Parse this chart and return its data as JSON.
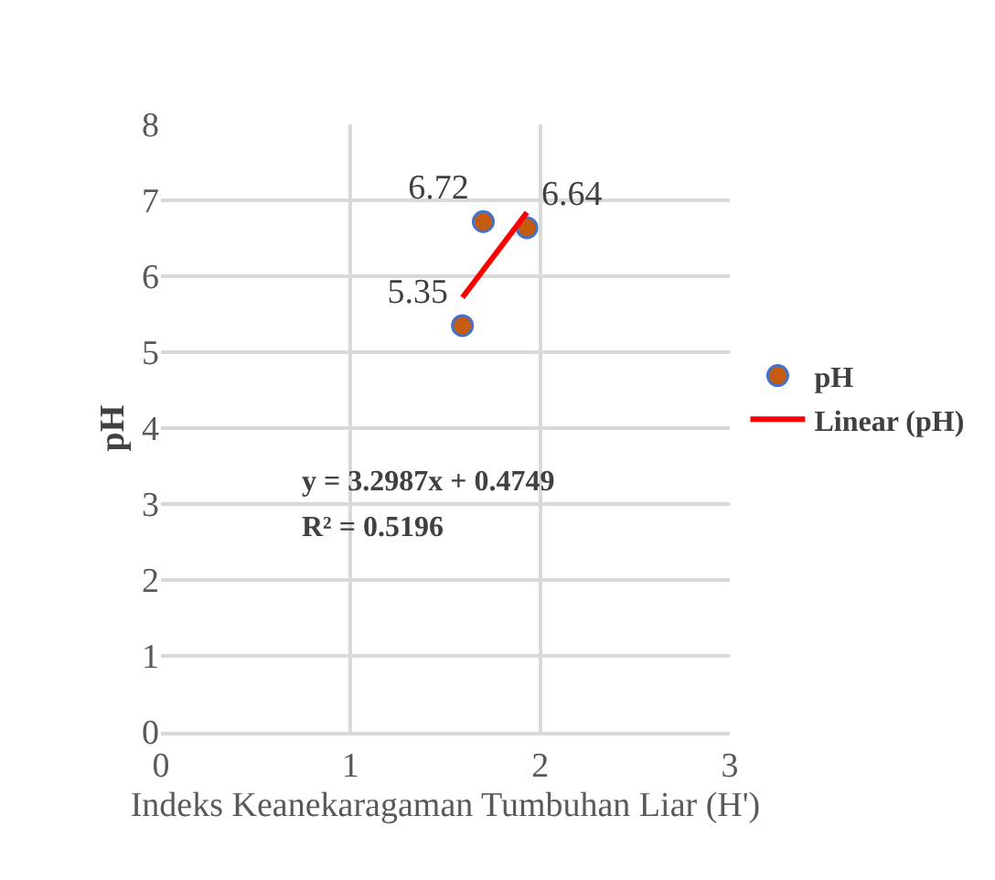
{
  "chart_data": {
    "type": "scatter",
    "xlabel": "Indeks Keanekaragaman Tumbuhan Liar (H')",
    "ylabel": "pH",
    "xlim": [
      0,
      3
    ],
    "xticks": [
      0,
      1,
      2,
      3
    ],
    "ylim": [
      0,
      8
    ],
    "yticks": [
      0,
      1,
      2,
      3,
      4,
      5,
      6,
      7,
      8
    ],
    "grid": true,
    "legend": "right",
    "marker": "circle",
    "series": [
      {
        "name": "pH",
        "type": "scatter",
        "color": "#c55a11",
        "x": [
          1.59,
          1.7,
          1.93
        ],
        "values": [
          5.35,
          6.72,
          6.64
        ],
        "value_labels": [
          "5.35",
          "6.72",
          "6.64"
        ]
      },
      {
        "name": "Linear (pH)",
        "type": "line",
        "color": "#ff0000",
        "x": [
          1.59,
          1.93
        ],
        "values": [
          5.72,
          6.84
        ],
        "line_style": "solid",
        "marker": "none"
      }
    ],
    "annotations": [
      "y = 3.2987x + 0.4749",
      "R² = 0.5196"
    ]
  }
}
